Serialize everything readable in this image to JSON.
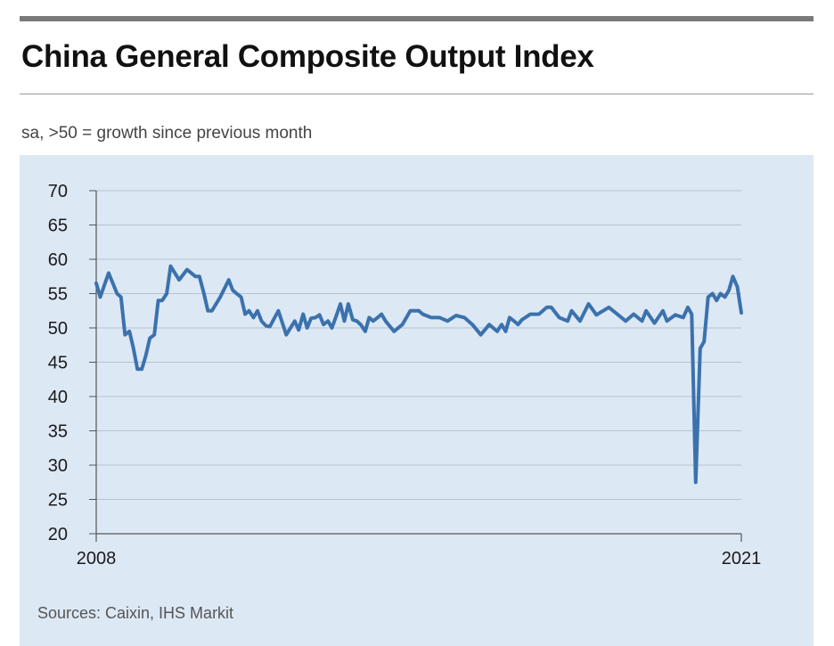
{
  "header": {
    "title": "China General Composite Output Index",
    "subtitle": "sa, >50 = growth since previous month"
  },
  "footer": {
    "source": "Sources: Caixin, IHS Markit"
  },
  "colors": {
    "line": "#3b72ad",
    "panel": "#dde8f5",
    "grid": "#b8c2cf",
    "axis": "#555555"
  },
  "chart_data": {
    "type": "line",
    "title": "China General Composite Output Index",
    "subtitle": "sa, >50 = growth since previous month",
    "xlabel": "",
    "ylabel": "",
    "x_tick_labels": [
      "2008",
      "2021"
    ],
    "xlim": [
      2008,
      2021
    ],
    "ylim": [
      20,
      70
    ],
    "y_ticks": [
      20,
      25,
      30,
      35,
      40,
      45,
      50,
      55,
      60,
      65,
      70
    ],
    "grid": true,
    "legend": "none",
    "series": [
      {
        "x": [
          2008.0,
          2008.08,
          2008.25,
          2008.42,
          2008.5,
          2008.58,
          2008.67,
          2008.75,
          2008.83,
          2008.92,
          2009.0,
          2009.08,
          2009.17,
          2009.25,
          2009.33,
          2009.42,
          2009.5,
          2009.67,
          2009.83,
          2010.0,
          2010.08,
          2010.17,
          2010.25,
          2010.33,
          2010.5,
          2010.67,
          2010.75,
          2010.83,
          2010.92,
          2011.0,
          2011.08,
          2011.17,
          2011.25,
          2011.33,
          2011.42,
          2011.5,
          2011.58,
          2011.67,
          2011.83,
          2012.0,
          2012.08,
          2012.17,
          2012.25,
          2012.33,
          2012.42,
          2012.5,
          2012.58,
          2012.67,
          2012.75,
          2012.83,
          2012.92,
          2013.0,
          2013.08,
          2013.17,
          2013.25,
          2013.33,
          2013.42,
          2013.5,
          2013.58,
          2013.67,
          2013.75,
          2013.83,
          2014.0,
          2014.17,
          2014.33,
          2014.5,
          2014.58,
          2014.75,
          2014.92,
          2015.08,
          2015.25,
          2015.42,
          2015.58,
          2015.75,
          2015.92,
          2016.08,
          2016.17,
          2016.25,
          2016.33,
          2016.42,
          2016.5,
          2016.58,
          2016.75,
          2016.92,
          2017.08,
          2017.17,
          2017.33,
          2017.5,
          2017.58,
          2017.75,
          2017.92,
          2018.08,
          2018.17,
          2018.33,
          2018.5,
          2018.67,
          2018.83,
          2019.0,
          2019.08,
          2019.25,
          2019.42,
          2019.5,
          2019.67,
          2019.83,
          2019.92,
          2020.0,
          2020.08,
          2020.17,
          2020.25,
          2020.33,
          2020.42,
          2020.5,
          2020.58,
          2020.67,
          2020.75,
          2020.83,
          2020.92,
          2021.0
        ],
        "values": [
          56.5,
          54.5,
          58.0,
          55.0,
          54.5,
          49.0,
          49.5,
          47.0,
          44.0,
          44.0,
          46.0,
          48.5,
          49.0,
          54.0,
          54.0,
          55.0,
          59.0,
          57.0,
          58.5,
          57.5,
          57.5,
          55.0,
          52.5,
          52.5,
          54.5,
          57.0,
          55.5,
          55.0,
          54.5,
          52.0,
          52.5,
          51.5,
          52.5,
          51.0,
          50.3,
          50.2,
          51.3,
          52.5,
          49.0,
          51.0,
          49.7,
          52.0,
          50.0,
          51.4,
          51.5,
          51.9,
          50.5,
          51.0,
          50.0,
          51.6,
          53.5,
          51.0,
          53.5,
          51.2,
          51.0,
          50.5,
          49.5,
          51.5,
          51.0,
          51.5,
          52.0,
          51.0,
          49.5,
          50.5,
          52.5,
          52.5,
          52.0,
          51.5,
          51.5,
          51.0,
          51.8,
          51.5,
          50.5,
          49.0,
          50.5,
          49.5,
          50.5,
          49.5,
          51.5,
          51.0,
          50.5,
          51.2,
          52.0,
          52.0,
          53.0,
          53.0,
          51.5,
          51.0,
          52.5,
          51.0,
          53.5,
          51.9,
          52.3,
          53.0,
          52.0,
          51.0,
          52.0,
          51.0,
          52.5,
          50.7,
          52.5,
          51.0,
          51.9,
          51.5,
          53.0,
          52.0,
          27.5,
          47.0,
          48.0,
          54.5,
          55.0,
          54.0,
          55.0,
          54.5,
          55.5,
          57.5,
          56.0,
          52.2
        ]
      }
    ]
  }
}
